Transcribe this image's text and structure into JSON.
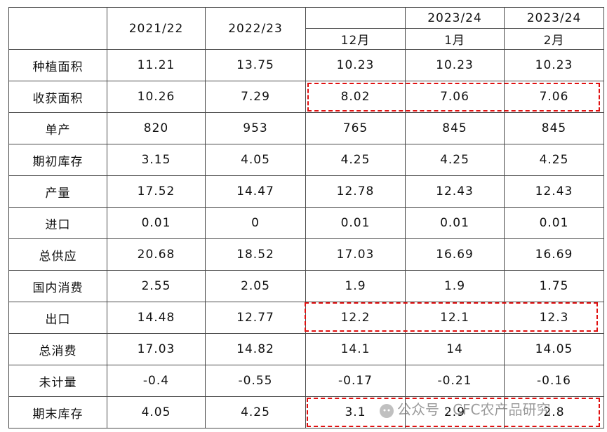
{
  "table": {
    "columns": [
      {
        "label": "2021/22"
      },
      {
        "label": "2022/23"
      },
      {
        "month": "12月"
      },
      {
        "year": "2023/24",
        "month": "1月"
      },
      {
        "year": "2023/24",
        "month": "2月"
      }
    ],
    "rows": [
      {
        "label": "种植面积",
        "values": [
          "11.21",
          "13.75",
          "10.23",
          "10.23",
          "10.23"
        ]
      },
      {
        "label": "收获面积",
        "values": [
          "10.26",
          "7.29",
          "8.02",
          "7.06",
          "7.06"
        ]
      },
      {
        "label": "单产",
        "values": [
          "820",
          "953",
          "765",
          "845",
          "845"
        ]
      },
      {
        "label": "期初库存",
        "values": [
          "3.15",
          "4.05",
          "4.25",
          "4.25",
          "4.25"
        ]
      },
      {
        "label": "产量",
        "values": [
          "17.52",
          "14.47",
          "12.78",
          "12.43",
          "12.43"
        ]
      },
      {
        "label": "进口",
        "values": [
          "0.01",
          "0",
          "0.01",
          "0.01",
          "0.01"
        ]
      },
      {
        "label": "总供应",
        "values": [
          "20.68",
          "18.52",
          "17.03",
          "16.69",
          "16.69"
        ]
      },
      {
        "label": "国内消费",
        "values": [
          "2.55",
          "2.05",
          "1.9",
          "1.9",
          "1.75"
        ]
      },
      {
        "label": "出口",
        "values": [
          "14.48",
          "12.77",
          "12.2",
          "12.1",
          "12.3"
        ]
      },
      {
        "label": "总消费",
        "values": [
          "17.03",
          "14.82",
          "14.1",
          "14",
          "14.05"
        ]
      },
      {
        "label": "未计量",
        "values": [
          "-0.4",
          "-0.55",
          "-0.17",
          "-0.21",
          "-0.16"
        ]
      },
      {
        "label": "期末库存",
        "values": [
          "4.05",
          "4.25",
          "3.1",
          "2.9",
          "2.8"
        ]
      }
    ]
  },
  "watermark": "公众号 · CFC农产品研究"
}
